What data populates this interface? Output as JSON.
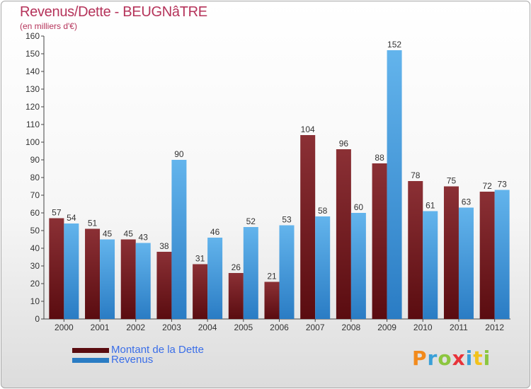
{
  "header": {
    "title": "Revenus/Dette - BEUGNâTRE",
    "subtitle": "(en milliers d'€)"
  },
  "legend": {
    "debt_label": "Montant de la Dette",
    "revenue_label": "Revenus"
  },
  "logo": {
    "text": "Proxiti"
  },
  "colors": {
    "debt_top": "#8b3035",
    "debt_bottom": "#5a0c10",
    "revenue_top": "#63b4ec",
    "revenue_bottom": "#2a7cc4",
    "title": "#b5335a",
    "legend_text": "#3a6ee8"
  },
  "chart_data": {
    "type": "bar",
    "title": "Revenus/Dette - BEUGNâTRE",
    "subtitle": "(en milliers d'€)",
    "xlabel": "",
    "ylabel": "",
    "ylim": [
      0,
      160
    ],
    "ytick_step": 10,
    "grid": false,
    "legend_position": "bottom-left",
    "categories": [
      "2000",
      "2001",
      "2002",
      "2003",
      "2004",
      "2005",
      "2006",
      "2007",
      "2008",
      "2009",
      "2010",
      "2011",
      "2012"
    ],
    "series": [
      {
        "name": "Montant de la Dette",
        "values": [
          57,
          51,
          45,
          38,
          31,
          26,
          21,
          104,
          96,
          88,
          78,
          75,
          72
        ]
      },
      {
        "name": "Revenus",
        "values": [
          54,
          45,
          43,
          90,
          46,
          52,
          53,
          58,
          60,
          152,
          61,
          63,
          73
        ]
      }
    ]
  }
}
